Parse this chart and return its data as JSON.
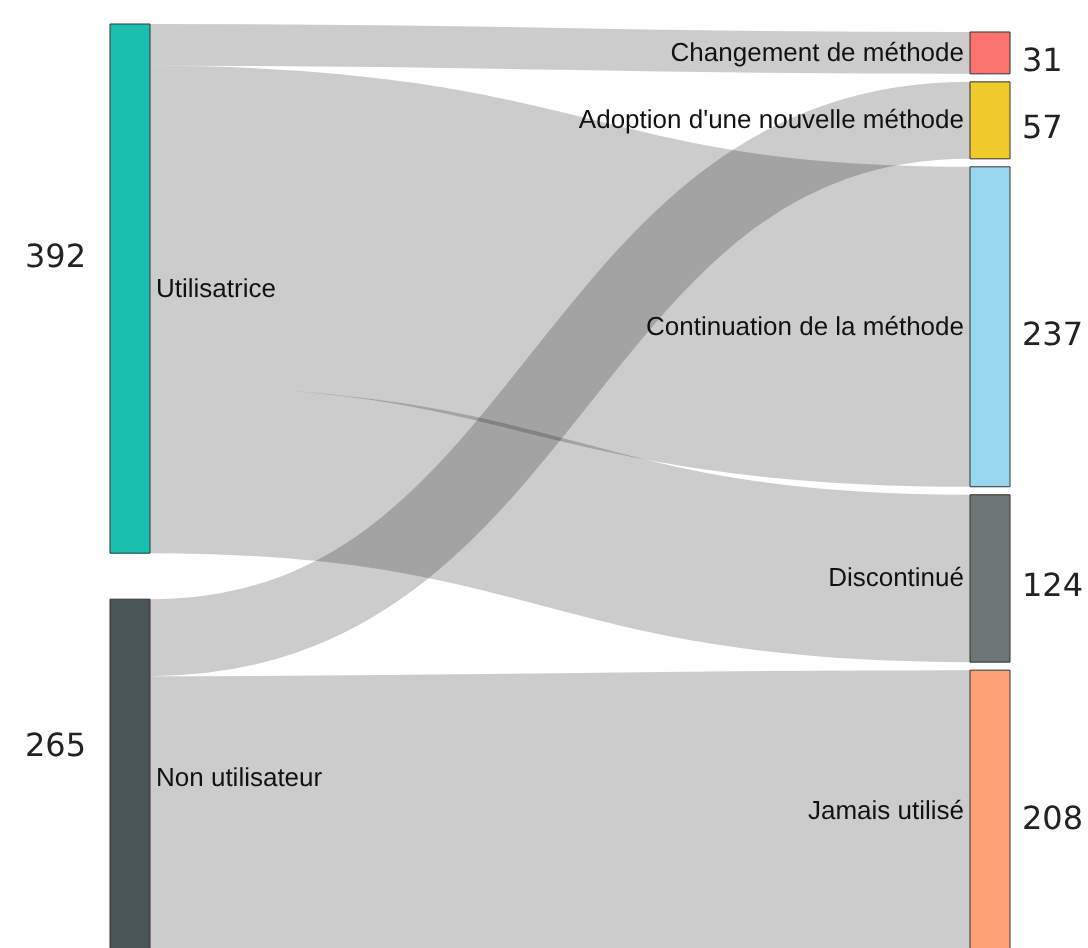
{
  "chart_data": {
    "type": "other",
    "categories": [
      "Utilisatrice",
      "Non utilisateur",
      "Changement de méthode",
      "Adoption d'une nouvelle méthode",
      "Continuation de la méthode",
      "Discontinué",
      "Jamais utilisé"
    ],
    "values": [
      392,
      265,
      31,
      57,
      237,
      124,
      208
    ],
    "colors": [
      "#1bbfb0",
      "#4a5558",
      "#fa736c",
      "#f0cb2c",
      "#98d6ee",
      "#6d7876",
      "#fca176"
    ],
    "data_labels": true,
    "series": [
      {
        "values": [
          null,
          null,
          true,
          null,
          true,
          true,
          null
        ]
      },
      {
        "values": [
          null,
          null,
          null,
          true,
          null,
          null,
          true
        ]
      }
    ]
  }
}
